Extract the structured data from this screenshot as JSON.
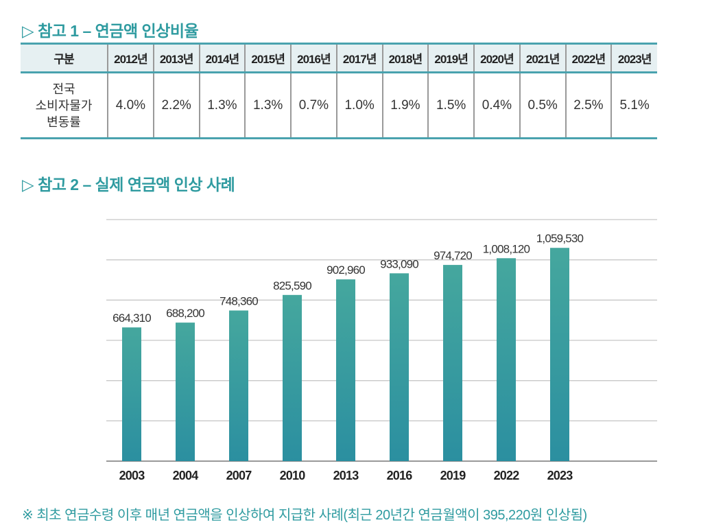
{
  "section1": {
    "title": "▷ 참고 1 – 연금액 인상비율"
  },
  "table": {
    "header": [
      "구분",
      "2012년",
      "2013년",
      "2014년",
      "2015년",
      "2016년",
      "2017년",
      "2018년",
      "2019년",
      "2020년",
      "2021년",
      "2022년",
      "2023년"
    ],
    "row_label": [
      "전국",
      "소비자물가",
      "변동률"
    ],
    "values": [
      "4.0%",
      "2.2%",
      "1.3%",
      "1.3%",
      "0.7%",
      "1.0%",
      "1.9%",
      "1.5%",
      "0.4%",
      "0.5%",
      "2.5%",
      "5.1%"
    ]
  },
  "section2": {
    "title": "▷ 참고 2 – 실제 연금액 인상 사례"
  },
  "chart_data": {
    "type": "bar",
    "categories": [
      "2003",
      "2004",
      "2007",
      "2010",
      "2013",
      "2016",
      "2019",
      "2022",
      "2023"
    ],
    "values": [
      664310,
      688200,
      748360,
      825590,
      902960,
      933090,
      974720,
      1008120,
      1059530
    ],
    "labels": [
      "664,310",
      "688,200",
      "748,360",
      "825,590",
      "902,960",
      "933,090",
      "974,720",
      "1,008,120",
      "1,059,530"
    ],
    "ylim": [
      0,
      1200000
    ],
    "yticks": [
      0,
      200000,
      400000,
      600000,
      800000,
      1000000,
      1200000
    ],
    "grid": true,
    "bar_color_top": "#45a79e",
    "bar_color_bottom": "#2b8fa0"
  },
  "footnote": "※ 최초 연금수령 이후 매년 연금액을 인상하여 지급한 사례(최근 20년간 연금월액이 395,220원 인상됨)"
}
